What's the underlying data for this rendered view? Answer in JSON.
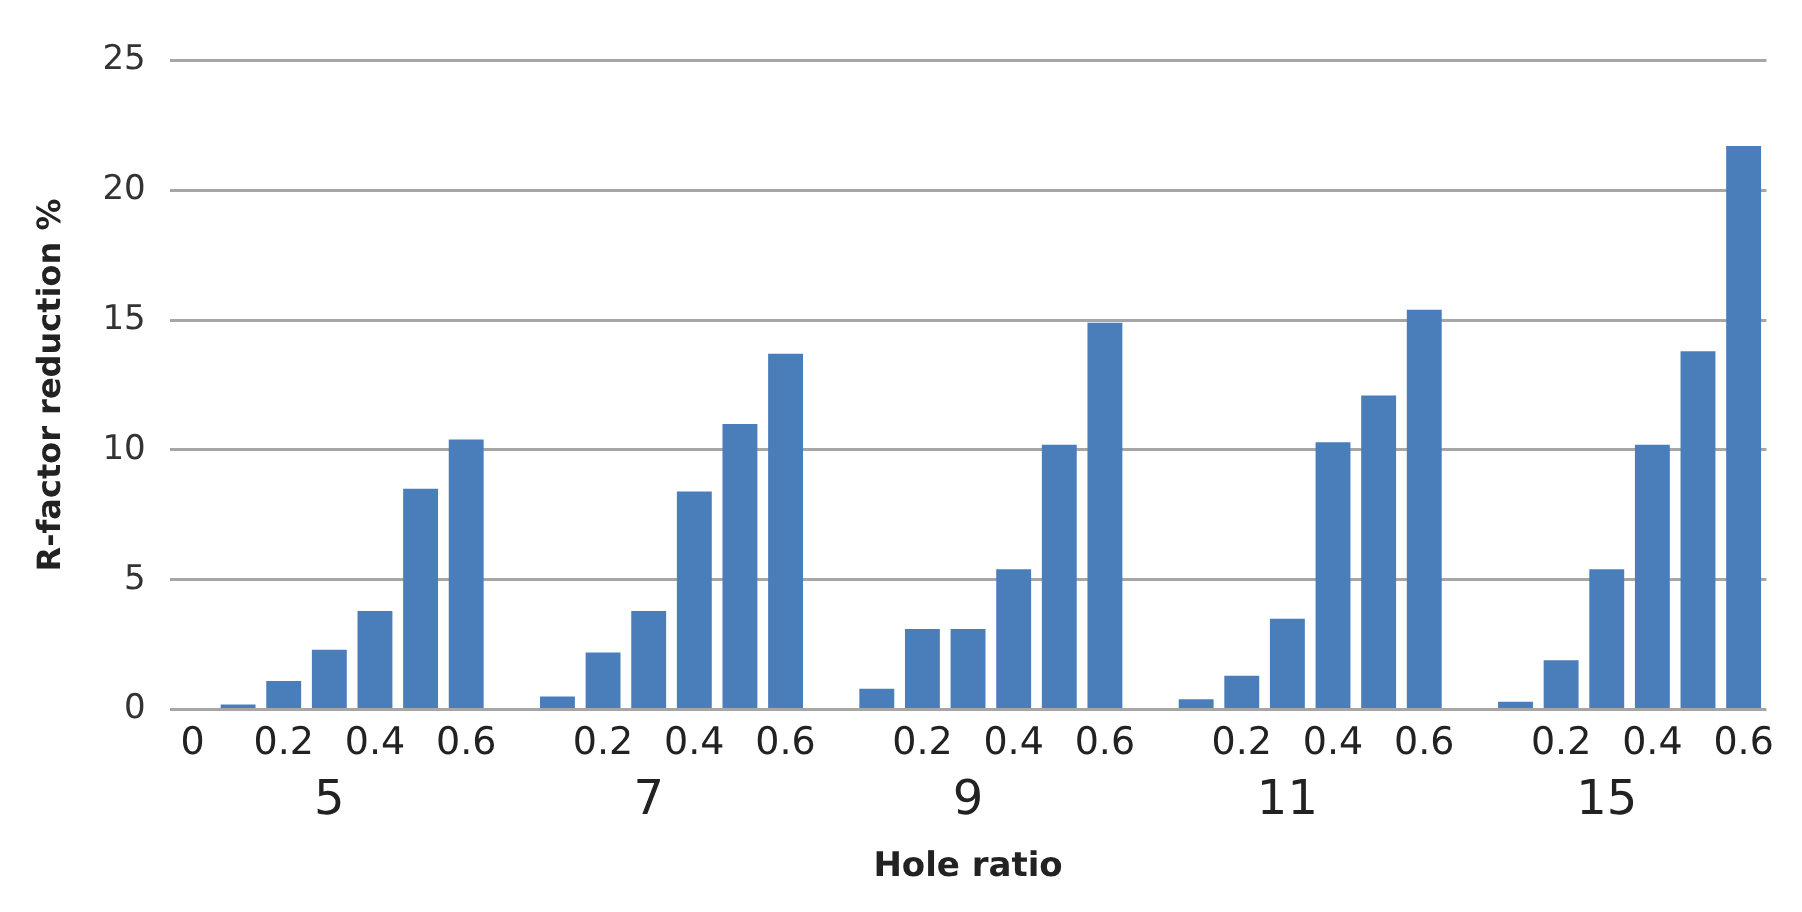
{
  "chart_data": {
    "type": "bar",
    "xlabel": "Hole ratio",
    "ylabel": "R-factor reduction %",
    "categories": [
      "0",
      null,
      "0.2",
      null,
      "0.4",
      null,
      "0.6",
      null,
      null,
      "0.2",
      null,
      "0.4",
      null,
      "0.6",
      null,
      null,
      "0.2",
      null,
      "0.4",
      null,
      "0.6",
      null,
      null,
      "0.2",
      null,
      "0.4",
      null,
      "0.6",
      null,
      null,
      "0.2",
      null,
      "0.4",
      null,
      "0.6"
    ],
    "values": [
      null,
      0.2,
      1.1,
      2.3,
      3.8,
      8.5,
      10.4,
      null,
      0.5,
      2.2,
      3.8,
      8.4,
      11.0,
      13.7,
      null,
      0.8,
      3.1,
      3.1,
      5.4,
      10.2,
      14.9,
      null,
      0.4,
      1.3,
      3.5,
      10.3,
      12.1,
      15.4,
      null,
      0.3,
      1.9,
      5.4,
      10.2,
      13.8,
      21.7
    ],
    "color": "#4a7ebb",
    "ylim": [
      0,
      25
    ],
    "yticks": [
      0,
      5,
      10,
      15,
      20,
      25
    ],
    "grid": "y",
    "annotations": [
      "5",
      "7",
      "9",
      "11",
      "15"
    ]
  }
}
